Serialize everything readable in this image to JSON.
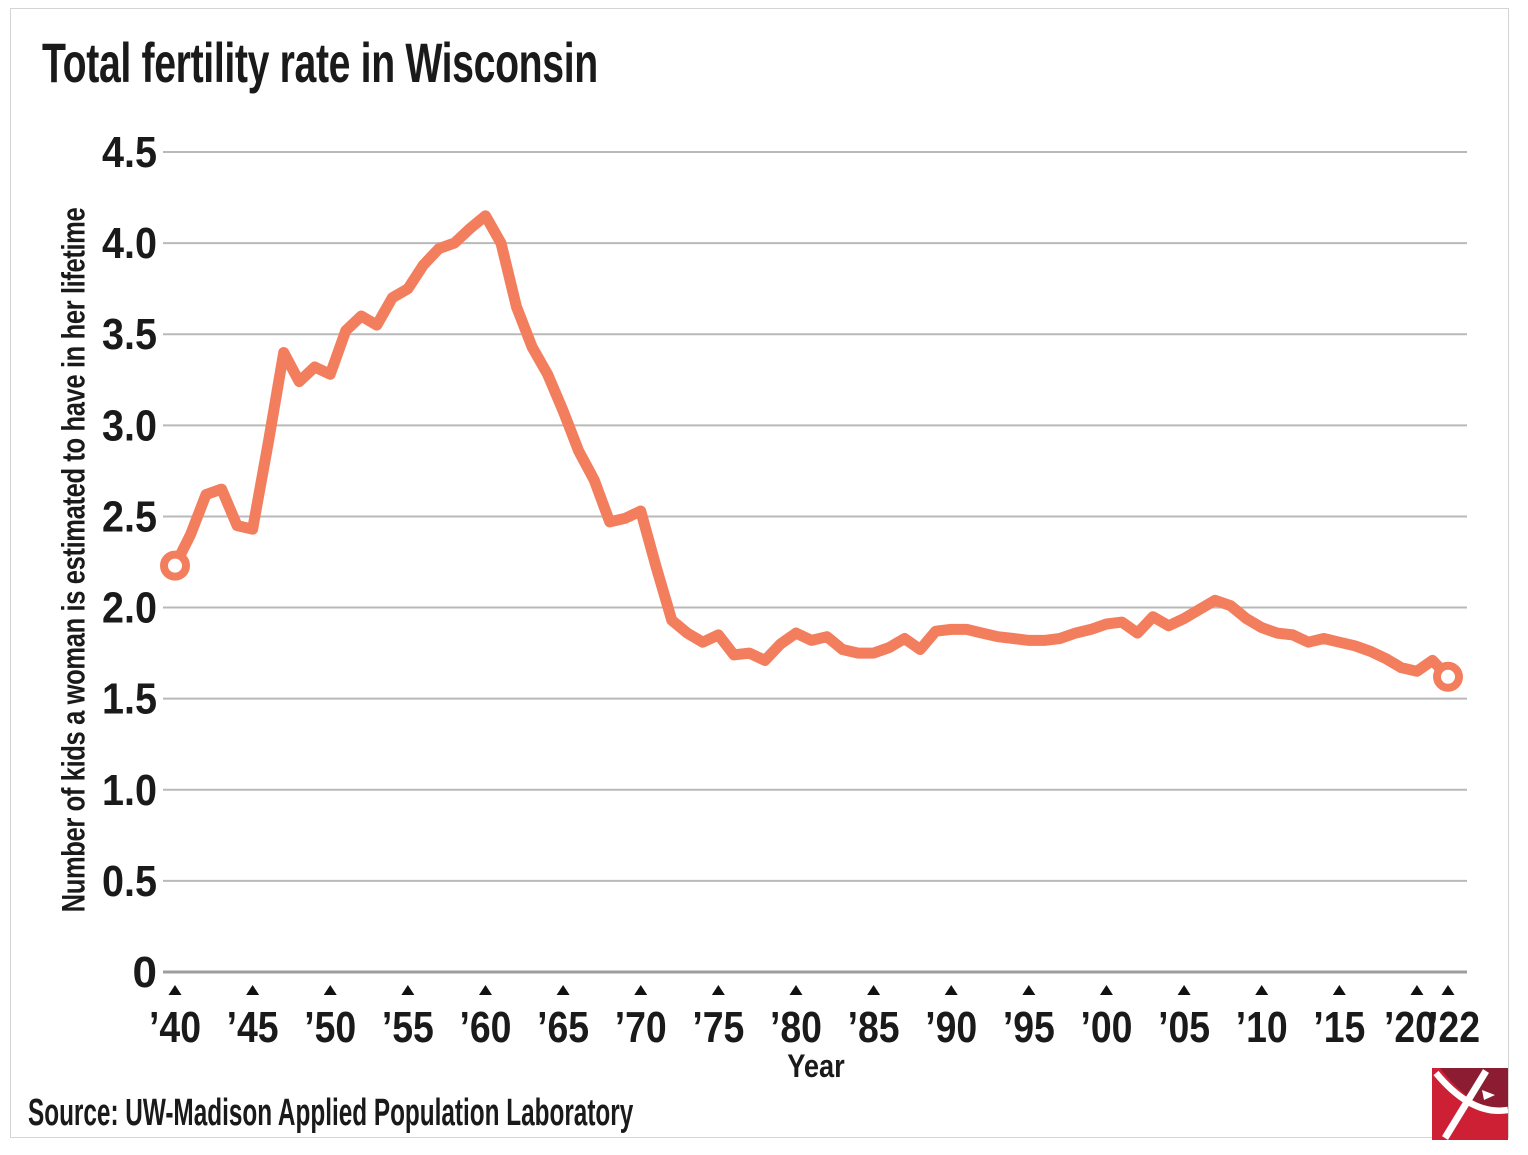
{
  "chart_data": {
    "type": "line",
    "title": "Total fertility rate in Wisconsin",
    "xlabel": "Year",
    "ylabel": "Number of kids a woman is estimated to have in her lifetime",
    "source": "Source: UW-Madison Applied Population Laboratory",
    "x_range": [
      1940,
      2022
    ],
    "ylim": [
      0,
      4.5
    ],
    "grid": "horizontal",
    "legend_position": "none",
    "endpoint_marker": "open-circle",
    "y_ticks": [
      {
        "value": 4.5,
        "label": "4.5"
      },
      {
        "value": 4.0,
        "label": "4.0"
      },
      {
        "value": 3.5,
        "label": "3.5"
      },
      {
        "value": 3.0,
        "label": "3.0"
      },
      {
        "value": 2.5,
        "label": "2.5"
      },
      {
        "value": 2.0,
        "label": "2.0"
      },
      {
        "value": 1.5,
        "label": "1.5"
      },
      {
        "value": 1.0,
        "label": "1.0"
      },
      {
        "value": 0.5,
        "label": "0.5"
      },
      {
        "value": 0,
        "label": "0"
      }
    ],
    "x_ticks": [
      {
        "year": 1940,
        "label": "’40"
      },
      {
        "year": 1945,
        "label": "’45"
      },
      {
        "year": 1950,
        "label": "’50"
      },
      {
        "year": 1955,
        "label": "’55"
      },
      {
        "year": 1960,
        "label": "’60"
      },
      {
        "year": 1965,
        "label": "’65"
      },
      {
        "year": 1970,
        "label": "’70"
      },
      {
        "year": 1975,
        "label": "’75"
      },
      {
        "year": 1980,
        "label": "’80"
      },
      {
        "year": 1985,
        "label": "’85"
      },
      {
        "year": 1990,
        "label": "’90"
      },
      {
        "year": 1995,
        "label": "’95"
      },
      {
        "year": 2000,
        "label": "’00"
      },
      {
        "year": 2005,
        "label": "’05"
      },
      {
        "year": 2010,
        "label": "’10"
      },
      {
        "year": 2015,
        "label": "’15"
      },
      {
        "year": 2020,
        "label": "’20"
      },
      {
        "year": 2022,
        "label": "’22"
      }
    ],
    "series": [
      {
        "name": "Total fertility rate",
        "color": "#F37E5D",
        "start_year": 1940,
        "values": [
          2.23,
          2.4,
          2.62,
          2.65,
          2.45,
          2.43,
          2.9,
          3.4,
          3.24,
          3.32,
          3.28,
          3.52,
          3.6,
          3.55,
          3.7,
          3.75,
          3.88,
          3.97,
          4.0,
          4.08,
          4.15,
          4.0,
          3.65,
          3.43,
          3.28,
          3.08,
          2.86,
          2.7,
          2.47,
          2.49,
          2.53,
          2.22,
          1.93,
          1.86,
          1.81,
          1.85,
          1.74,
          1.75,
          1.71,
          1.8,
          1.86,
          1.82,
          1.84,
          1.77,
          1.75,
          1.75,
          1.78,
          1.83,
          1.77,
          1.87,
          1.88,
          1.88,
          1.86,
          1.84,
          1.83,
          1.82,
          1.82,
          1.83,
          1.86,
          1.88,
          1.91,
          1.92,
          1.86,
          1.95,
          1.9,
          1.94,
          1.99,
          2.04,
          2.01,
          1.94,
          1.89,
          1.86,
          1.85,
          1.81,
          1.83,
          1.81,
          1.79,
          1.76,
          1.72,
          1.67,
          1.65,
          1.71,
          1.62
        ]
      }
    ]
  },
  "style": {
    "line_color": "#F37E5D",
    "grid_color": "#b9b9b9",
    "axis_color": "#9e9e9e",
    "text_color": "#1a1a1a",
    "tick_triangle_color": "#111111",
    "card_border_color": "#d4d4d4",
    "logo_bright_red": "#CE2034",
    "logo_dark_red": "#8C1C31"
  }
}
